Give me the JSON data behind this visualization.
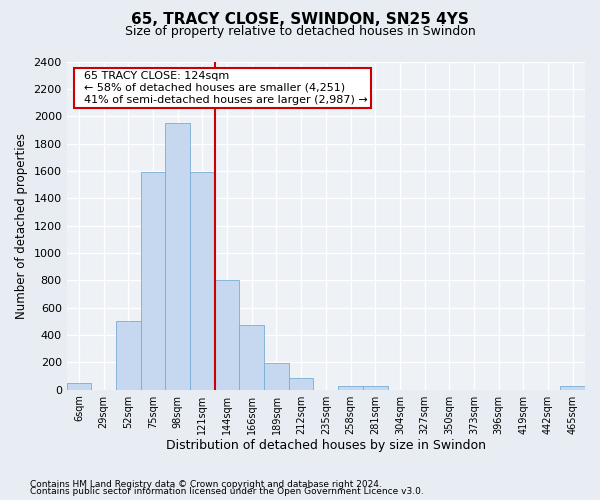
{
  "title": "65, TRACY CLOSE, SWINDON, SN25 4YS",
  "subtitle": "Size of property relative to detached houses in Swindon",
  "xlabel": "Distribution of detached houses by size in Swindon",
  "ylabel": "Number of detached properties",
  "annotation_title": "65 TRACY CLOSE: 124sqm",
  "annotation_line1": "← 58% of detached houses are smaller (4,251)",
  "annotation_line2": "41% of semi-detached houses are larger (2,987) →",
  "bar_labels": [
    "6sqm",
    "29sqm",
    "52sqm",
    "75sqm",
    "98sqm",
    "121sqm",
    "144sqm",
    "166sqm",
    "189sqm",
    "212sqm",
    "235sqm",
    "258sqm",
    "281sqm",
    "304sqm",
    "327sqm",
    "350sqm",
    "373sqm",
    "396sqm",
    "419sqm",
    "442sqm",
    "465sqm"
  ],
  "bar_values": [
    50,
    0,
    500,
    1590,
    1950,
    1590,
    800,
    470,
    195,
    85,
    0,
    30,
    25,
    0,
    0,
    0,
    0,
    0,
    0,
    0,
    25
  ],
  "bar_color": "#c5d8ef",
  "bar_edge_color": "#7aadd4",
  "vline_color": "#cc0000",
  "vline_bar_index": 5,
  "ylim": [
    0,
    2400
  ],
  "yticks": [
    0,
    200,
    400,
    600,
    800,
    1000,
    1200,
    1400,
    1600,
    1800,
    2000,
    2200,
    2400
  ],
  "footnote1": "Contains HM Land Registry data © Crown copyright and database right 2024.",
  "footnote2": "Contains public sector information licensed under the Open Government Licence v3.0.",
  "bg_color": "#e8edf3",
  "plot_bg_color": "#eef2f7"
}
